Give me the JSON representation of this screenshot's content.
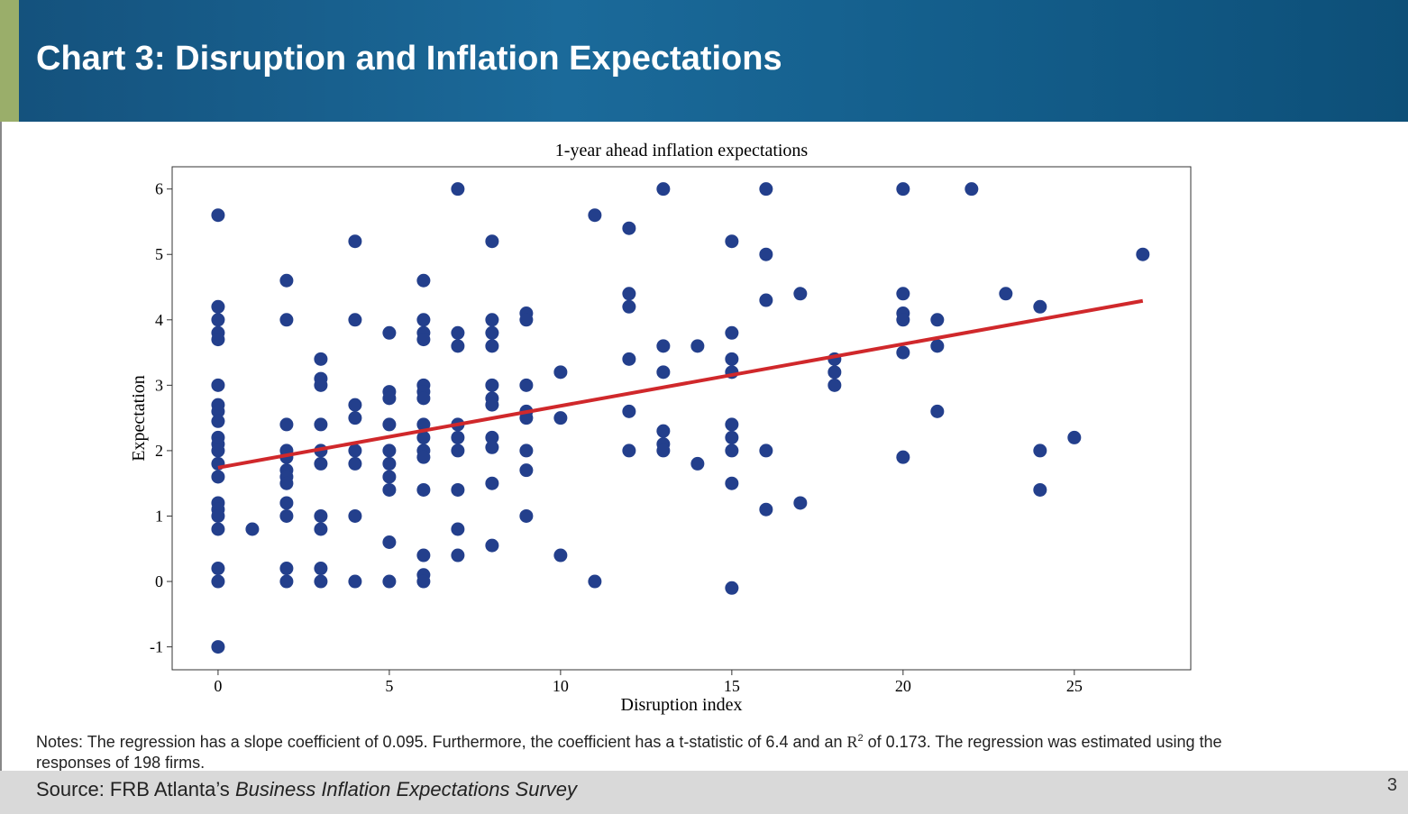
{
  "header": {
    "title": "Chart 3: Disruption and Inflation Expectations"
  },
  "notes": {
    "pre": "Notes: The regression has a slope coefficient of 0.095. Furthermore, the coefficient has a t-statistic of 6.4 and an ",
    "r": "R",
    "sup": "2",
    "post": " of 0.173. The regression was estimated using the responses of 198 firms."
  },
  "footer": {
    "source_prefix": "Source: FRB Atlanta’s ",
    "source_title": "Business Inflation Expectations Survey",
    "page": "3"
  },
  "chart_data": {
    "type": "scatter",
    "title": "1-year ahead inflation expectations",
    "xlabel": "Disruption index",
    "ylabel": "Expectation",
    "xlim": [
      -1.34,
      28.4
    ],
    "ylim": [
      -1.35,
      6.34
    ],
    "xticks": [
      0,
      5,
      10,
      15,
      20,
      25
    ],
    "yticks": [
      -1,
      0,
      1,
      2,
      3,
      4,
      5,
      6
    ],
    "grid": false,
    "colors": {
      "points": "#233f8c",
      "line": "#d0282b"
    },
    "regression": {
      "slope": 0.095,
      "x": [
        0,
        27
      ],
      "y": [
        1.74,
        4.29
      ]
    },
    "points": [
      [
        0,
        [
          5.6,
          4.2,
          4.0,
          3.8,
          3.7,
          3.0,
          2.7,
          2.6,
          2.45,
          2.2,
          2.1,
          2.0,
          1.8,
          1.6,
          1.2,
          1.1,
          1.0,
          0.8,
          0.2,
          0,
          -1
        ]
      ],
      [
        1,
        [
          0.8
        ]
      ],
      [
        2,
        [
          4.6,
          4.0,
          2.4,
          2.0,
          1.9,
          1.7,
          1.6,
          1.5,
          1.2,
          1.0,
          0.2,
          0
        ]
      ],
      [
        3,
        [
          3.4,
          3.1,
          3.0,
          2.4,
          2.0,
          1.8,
          1.0,
          0.8,
          0.2,
          0
        ]
      ],
      [
        4,
        [
          5.2,
          4.0,
          2.7,
          2.5,
          2.0,
          1.8,
          1.0,
          0
        ]
      ],
      [
        5,
        [
          3.8,
          2.9,
          2.8,
          2.4,
          2.0,
          1.8,
          1.6,
          1.4,
          0.6,
          0
        ]
      ],
      [
        6,
        [
          4.6,
          4.0,
          3.8,
          3.7,
          3.0,
          2.9,
          2.8,
          2.4,
          2.2,
          2.0,
          1.9,
          1.4,
          0.4,
          0.1,
          0
        ]
      ],
      [
        7,
        [
          6,
          3.8,
          3.6,
          2.4,
          2.2,
          2.0,
          1.4,
          0.8,
          0.4
        ]
      ],
      [
        8,
        [
          5.2,
          4.0,
          3.8,
          3.6,
          3.0,
          2.8,
          2.7,
          2.2,
          2.05,
          1.5,
          0.55
        ]
      ],
      [
        9,
        [
          4.1,
          4.0,
          3.0,
          2.6,
          2.5,
          2.0,
          1.7,
          1.0
        ]
      ],
      [
        10,
        [
          3.2,
          2.5,
          0.4
        ]
      ],
      [
        11,
        [
          5.6,
          0
        ]
      ],
      [
        12,
        [
          5.4,
          4.4,
          4.2,
          3.4,
          2.6,
          2.0
        ]
      ],
      [
        13,
        [
          6,
          3.6,
          3.2,
          2.3,
          2.1,
          2.0
        ]
      ],
      [
        14,
        [
          3.6,
          1.8
        ]
      ],
      [
        15,
        [
          5.2,
          3.8,
          3.4,
          3.2,
          2.4,
          2.2,
          2.0,
          1.5,
          -0.1
        ]
      ],
      [
        16,
        [
          6,
          5.0,
          4.3,
          2.0,
          1.1
        ]
      ],
      [
        17,
        [
          4.4,
          1.2
        ]
      ],
      [
        18,
        [
          3.4,
          3.2,
          3.0
        ]
      ],
      [
        20,
        [
          6,
          4.4,
          4.1,
          4.0,
          3.5,
          1.9
        ]
      ],
      [
        21,
        [
          4.0,
          3.6,
          2.6
        ]
      ],
      [
        22,
        [
          6
        ]
      ],
      [
        23,
        [
          4.4
        ]
      ],
      [
        24,
        [
          4.2,
          2.0,
          1.4
        ]
      ],
      [
        25,
        [
          2.2
        ]
      ],
      [
        27,
        [
          5.0
        ]
      ]
    ]
  }
}
